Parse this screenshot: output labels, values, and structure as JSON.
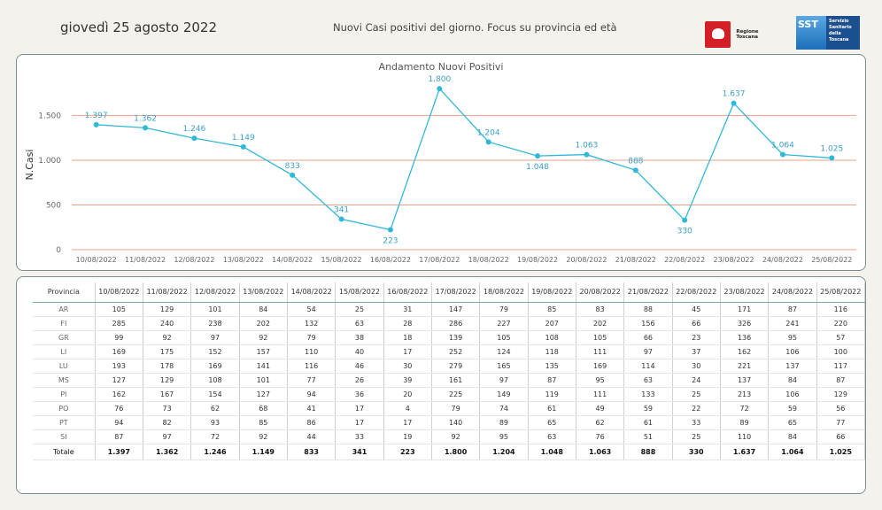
{
  "header": {
    "date": "giovedì 25 agosto 2022",
    "subtitle": "Nuovi Casi positivi del giorno. Focus su provincia ed età",
    "logo_rt_text": "Regione Toscana",
    "logo_sst_mark": "SST",
    "logo_sst_text": "Servizio Sanitario della Toscana"
  },
  "colors": {
    "line": "#30b8d8",
    "gridline": "#e8a08a",
    "label": "#3b9fc7"
  },
  "chart_data": {
    "type": "line",
    "title": "Andamento Nuovi Positivi",
    "xlabel": "",
    "ylabel": "N.Casi",
    "ylim": [
      0,
      1900
    ],
    "yticks": [
      0,
      500,
      1000,
      1500
    ],
    "ytick_labels": [
      "0",
      "500",
      "1.000",
      "1.500"
    ],
    "grid": true,
    "categories": [
      "10/08/2022",
      "11/08/2022",
      "12/08/2022",
      "13/08/2022",
      "14/08/2022",
      "15/08/2022",
      "16/08/2022",
      "17/08/2022",
      "18/08/2022",
      "19/08/2022",
      "20/08/2022",
      "21/08/2022",
      "22/08/2022",
      "23/08/2022",
      "24/08/2022",
      "25/08/2022"
    ],
    "values": [
      1397,
      1362,
      1246,
      1149,
      833,
      341,
      223,
      1800,
      1204,
      1048,
      1063,
      888,
      330,
      1637,
      1064,
      1025
    ],
    "value_labels": [
      "1.397",
      "1.362",
      "1.246",
      "1.149",
      "833",
      "341",
      "223",
      "1.800",
      "1.204",
      "1.048",
      "1.063",
      "888",
      "330",
      "1.637",
      "1.064",
      "1.025"
    ]
  },
  "table": {
    "header_label": "Provincia",
    "dates": [
      "10/08/2022",
      "11/08/2022",
      "12/08/2022",
      "13/08/2022",
      "14/08/2022",
      "15/08/2022",
      "16/08/2022",
      "17/08/2022",
      "18/08/2022",
      "19/08/2022",
      "20/08/2022",
      "21/08/2022",
      "22/08/2022",
      "23/08/2022",
      "24/08/2022",
      "25/08/2022"
    ],
    "rows": [
      {
        "prov": "AR",
        "values": [
          "105",
          "129",
          "101",
          "84",
          "54",
          "25",
          "31",
          "147",
          "79",
          "85",
          "83",
          "88",
          "45",
          "171",
          "87",
          "116"
        ]
      },
      {
        "prov": "FI",
        "values": [
          "285",
          "240",
          "238",
          "202",
          "132",
          "63",
          "28",
          "286",
          "227",
          "207",
          "202",
          "156",
          "66",
          "326",
          "241",
          "220"
        ]
      },
      {
        "prov": "GR",
        "values": [
          "99",
          "92",
          "97",
          "92",
          "79",
          "38",
          "18",
          "139",
          "105",
          "108",
          "105",
          "66",
          "23",
          "136",
          "95",
          "57"
        ]
      },
      {
        "prov": "LI",
        "values": [
          "169",
          "175",
          "152",
          "157",
          "110",
          "40",
          "17",
          "252",
          "124",
          "118",
          "111",
          "97",
          "37",
          "162",
          "106",
          "100"
        ]
      },
      {
        "prov": "LU",
        "values": [
          "193",
          "178",
          "169",
          "141",
          "116",
          "46",
          "30",
          "279",
          "165",
          "135",
          "169",
          "114",
          "30",
          "221",
          "137",
          "117"
        ]
      },
      {
        "prov": "MS",
        "values": [
          "127",
          "129",
          "108",
          "101",
          "77",
          "26",
          "39",
          "161",
          "97",
          "87",
          "95",
          "63",
          "24",
          "137",
          "84",
          "87"
        ]
      },
      {
        "prov": "PI",
        "values": [
          "162",
          "167",
          "154",
          "127",
          "94",
          "36",
          "20",
          "225",
          "149",
          "119",
          "111",
          "133",
          "25",
          "213",
          "106",
          "129"
        ]
      },
      {
        "prov": "PO",
        "values": [
          "76",
          "73",
          "62",
          "68",
          "41",
          "17",
          "4",
          "79",
          "74",
          "61",
          "49",
          "59",
          "22",
          "72",
          "59",
          "56"
        ]
      },
      {
        "prov": "PT",
        "values": [
          "94",
          "82",
          "93",
          "85",
          "86",
          "17",
          "17",
          "140",
          "89",
          "65",
          "62",
          "61",
          "33",
          "89",
          "65",
          "77"
        ]
      },
      {
        "prov": "SI",
        "values": [
          "87",
          "97",
          "72",
          "92",
          "44",
          "33",
          "19",
          "92",
          "95",
          "63",
          "76",
          "51",
          "25",
          "110",
          "84",
          "66"
        ]
      }
    ],
    "total": {
      "prov": "Totale",
      "values": [
        "1.397",
        "1.362",
        "1.246",
        "1.149",
        "833",
        "341",
        "223",
        "1.800",
        "1.204",
        "1.048",
        "1.063",
        "888",
        "330",
        "1.637",
        "1.064",
        "1.025"
      ]
    }
  }
}
